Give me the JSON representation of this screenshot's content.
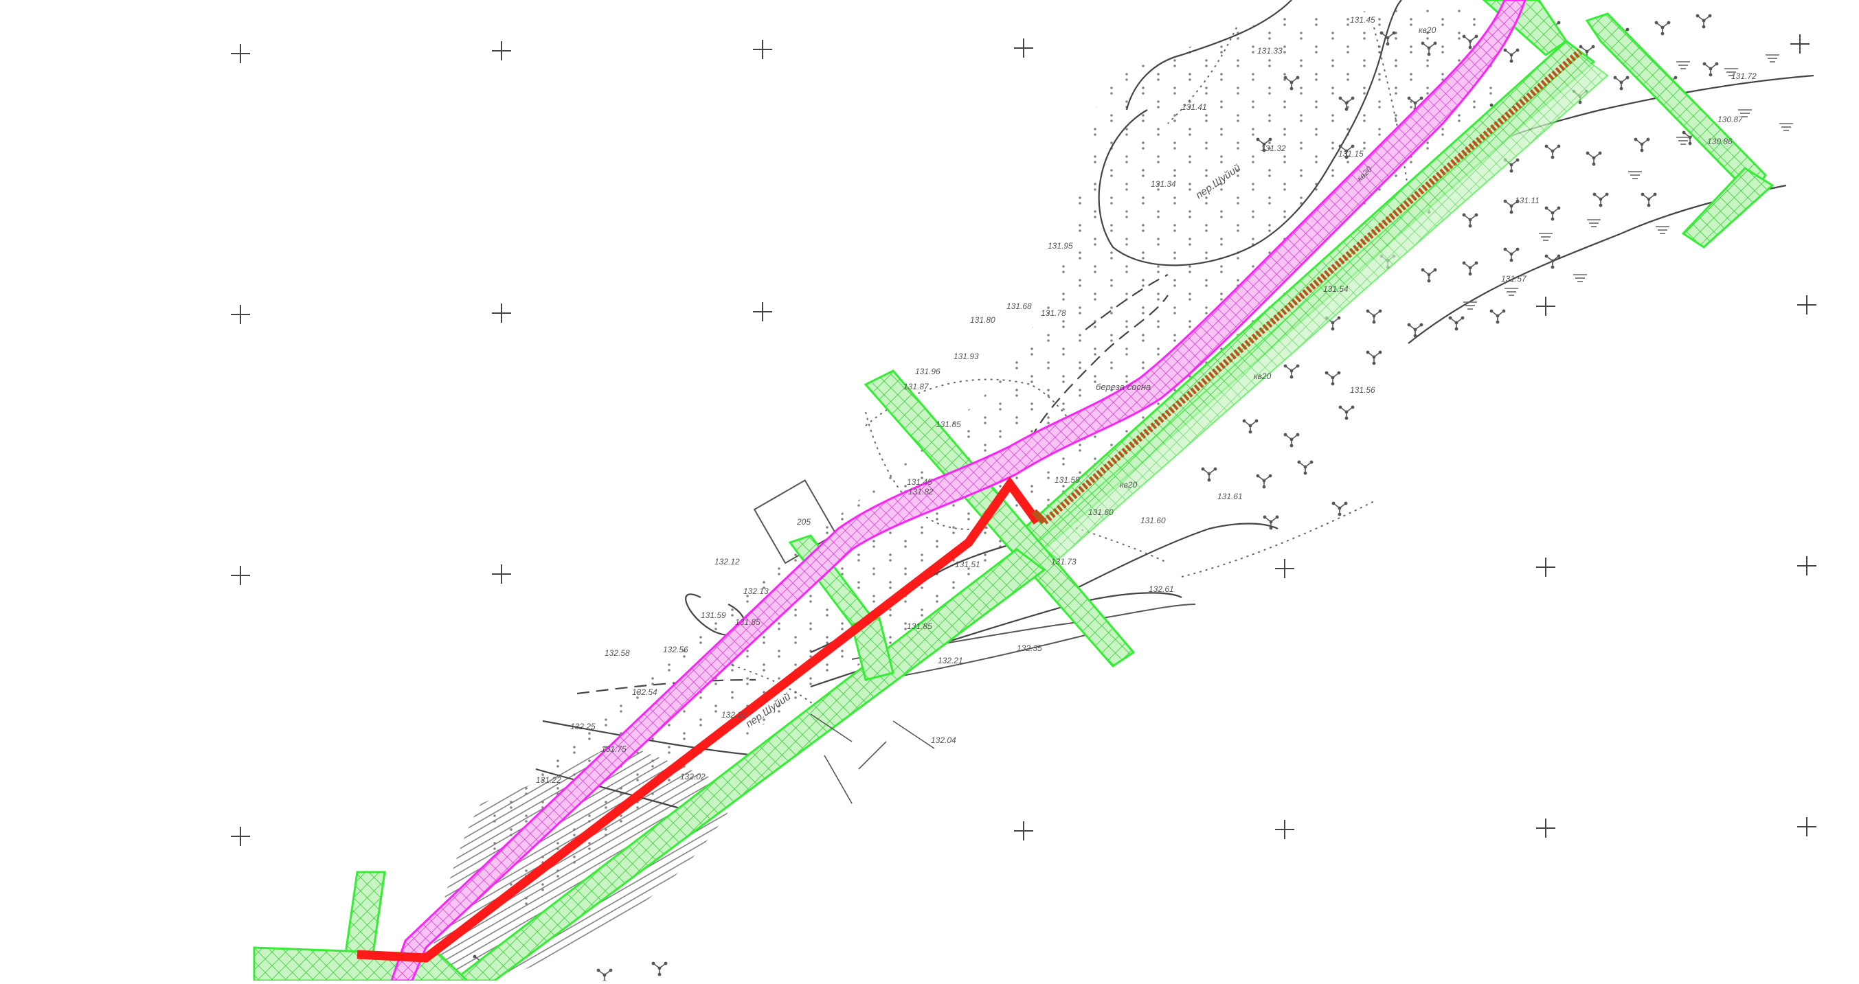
{
  "map": {
    "labels": {
      "building": "205",
      "street_1": "пер.Шуйий",
      "street_2": "пер.Шуйий",
      "birch_sosna": "береза сосна",
      "spot_heights": [
        "131.45",
        "131.33",
        "131.41",
        "131.34",
        "131.32",
        "131.15",
        "131.95",
        "131.78",
        "131.68",
        "131.80",
        "131.93",
        "131.96",
        "131.87",
        "131.85",
        "131.82",
        "131.45",
        "131.59",
        "131.60",
        "131.51",
        "131.73",
        "131.85",
        "132.12",
        "132.13",
        "131.59",
        "131.85",
        "132.58",
        "132.54",
        "132.56",
        "132.25",
        "132.21",
        "132.35",
        "131.75",
        "132.04",
        "132.20",
        "132.02",
        "131.22",
        "131.57",
        "131.56",
        "131.61",
        "131.11",
        "130.86",
        "130.87",
        "131.72",
        "131.54",
        "131.60",
        "132.61"
      ],
      "kv_labels": [
        "кв20",
        "кв20",
        "кв20",
        "кв20"
      ]
    },
    "layers": {
      "magenta_corridor": "#ff00ff",
      "green_corridor": "#33dd33",
      "red_line": "#ff1a1a",
      "brown_line": "#b8541a",
      "basemap_line": "#444444"
    }
  }
}
